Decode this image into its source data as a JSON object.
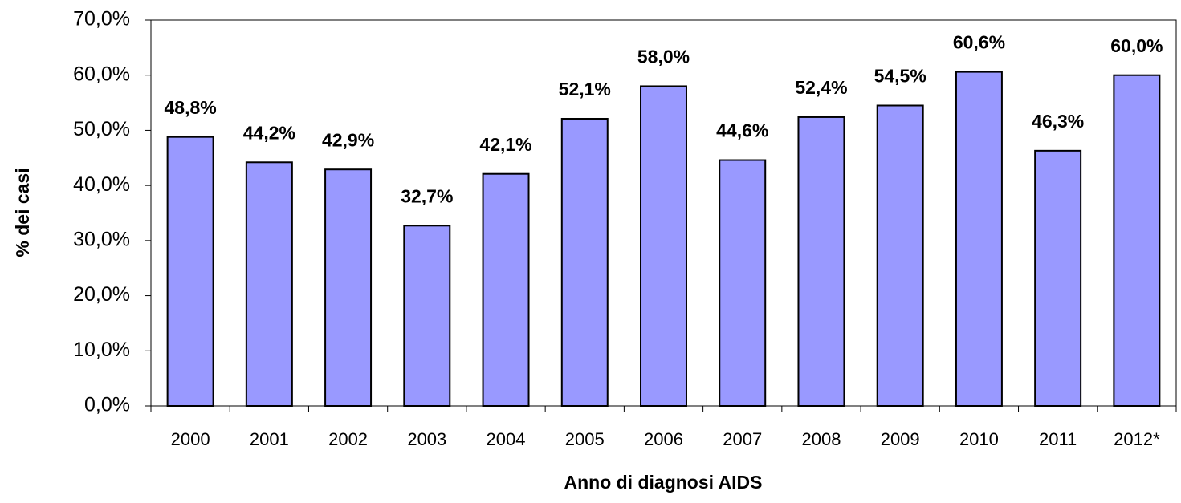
{
  "chart_data": {
    "type": "bar",
    "x_label": "Anno di diagnosi AIDS",
    "y_label": "% dei casi",
    "categories": [
      "2000",
      "2001",
      "2002",
      "2003",
      "2004",
      "2005",
      "2006",
      "2007",
      "2008",
      "2009",
      "2010",
      "2011",
      "2012*"
    ],
    "values": [
      48.8,
      44.2,
      42.9,
      32.7,
      42.1,
      52.1,
      58.0,
      44.6,
      52.4,
      54.5,
      60.6,
      46.3,
      60.0
    ],
    "value_labels": [
      "48,8%",
      "44,2%",
      "42,9%",
      "32,7%",
      "42,1%",
      "52,1%",
      "58,0%",
      "44,6%",
      "52,4%",
      "54,5%",
      "60,6%",
      "46,3%",
      "60,0%"
    ],
    "color": "#9999ff",
    "ylim": [
      0,
      70
    ],
    "yticks": [
      {
        "value": 0,
        "label": "0,0%"
      },
      {
        "value": 10,
        "label": "10,0%"
      },
      {
        "value": 20,
        "label": "20,0%"
      },
      {
        "value": 30,
        "label": "30,0%"
      },
      {
        "value": 40,
        "label": "40,0%"
      },
      {
        "value": 50,
        "label": "50,0%"
      },
      {
        "value": 60,
        "label": "60,0%"
      },
      {
        "value": 70,
        "label": "70,0%"
      }
    ],
    "grid": false
  }
}
